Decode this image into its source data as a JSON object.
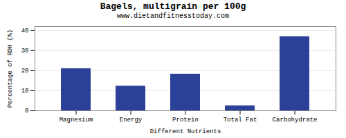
{
  "chart_data": {
    "type": "bar",
    "title": "Bagels, multigrain per 100g",
    "subtitle": "www.dietandfitnesstoday.com",
    "xlabel": "Different Nutrients",
    "ylabel": "Percentage of RDH (%)",
    "categories": [
      "Magnesium",
      "Energy",
      "Protein",
      "Total Fat",
      "Carbohydrate"
    ],
    "values": [
      21,
      12.3,
      18.3,
      2.5,
      37
    ],
    "color": "#2b4099",
    "ylim": [
      0,
      42
    ],
    "yticks": [
      0,
      10,
      20,
      30,
      40
    ],
    "grid": true
  }
}
